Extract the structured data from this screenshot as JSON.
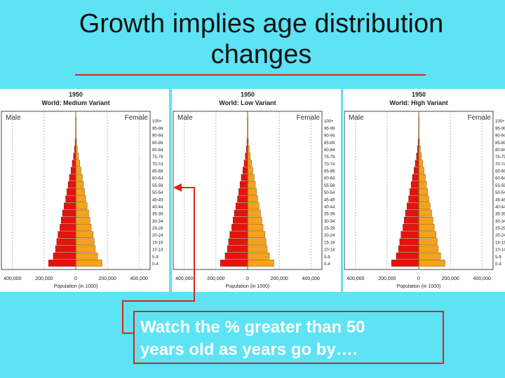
{
  "slide": {
    "title_line1": "Growth implies age distribution",
    "title_line2": "changes",
    "callout_line1": "Watch the % greater than 50",
    "callout_line2": "years old as years go by…."
  },
  "colors": {
    "background": "#5de3f4",
    "rule": "#d8261c",
    "male": "#e8120c",
    "female": "#f6a21a",
    "axis": "#7a5c1a"
  },
  "chart_data": [
    {
      "type": "bar",
      "title": "1950",
      "subtitle": "World: Medium Variant",
      "left_label": "Male",
      "right_label": "Female",
      "xlabel": "Population (in 1000)",
      "xticks": [
        "400,000",
        "200,000",
        "0",
        "200,000",
        "400,000"
      ],
      "xlim": [
        -470000,
        470000
      ],
      "categories": [
        "0-4",
        "5-9",
        "10-14",
        "15-19",
        "20-24",
        "25-29",
        "30-34",
        "35-39",
        "40-44",
        "45-49",
        "50-54",
        "55-59",
        "60-64",
        "65-69",
        "70-74",
        "75-79",
        "80-84",
        "85-89",
        "90-94",
        "95-99",
        "100+"
      ],
      "series": [
        {
          "name": "Male",
          "values": [
            172000,
            142000,
            128000,
            120000,
            112000,
            100000,
            92000,
            84000,
            74000,
            64000,
            56000,
            48000,
            40000,
            30000,
            22000,
            14000,
            8000,
            4000,
            1500,
            500,
            100
          ]
        },
        {
          "name": "Female",
          "values": [
            166000,
            138000,
            124000,
            117000,
            110000,
            98000,
            90000,
            82000,
            72000,
            64000,
            56000,
            49000,
            42000,
            33000,
            25000,
            17000,
            10000,
            5000,
            2000,
            600,
            150
          ]
        }
      ]
    },
    {
      "type": "bar",
      "title": "1950",
      "subtitle": "World: Low Variant",
      "left_label": "Male",
      "right_label": "Female",
      "xlabel": "Population (in 1000)",
      "xticks": [
        "400,000",
        "200,000",
        "0",
        "200,000",
        "400,000"
      ],
      "xlim": [
        -470000,
        470000
      ],
      "categories": [
        "0-4",
        "5-9",
        "10-14",
        "15-19",
        "20-24",
        "25-29",
        "30-34",
        "35-39",
        "40-44",
        "45-49",
        "50-54",
        "55-59",
        "60-64",
        "65-69",
        "70-74",
        "75-79",
        "80-84",
        "85-89",
        "90-94",
        "95-99",
        "100+"
      ],
      "series": [
        {
          "name": "Male",
          "values": [
            172000,
            142000,
            128000,
            120000,
            112000,
            100000,
            92000,
            84000,
            74000,
            64000,
            56000,
            48000,
            40000,
            30000,
            22000,
            14000,
            8000,
            4000,
            1500,
            500,
            100
          ]
        },
        {
          "name": "Female",
          "values": [
            166000,
            138000,
            124000,
            117000,
            110000,
            98000,
            90000,
            82000,
            72000,
            64000,
            56000,
            49000,
            42000,
            33000,
            25000,
            17000,
            10000,
            5000,
            2000,
            600,
            150
          ]
        }
      ]
    },
    {
      "type": "bar",
      "title": "1950",
      "subtitle": "World: High Variant",
      "left_label": "Male",
      "right_label": "Female",
      "xlabel": "Population (in 1000)",
      "xticks": [
        "400,000",
        "200,000",
        "0",
        "200,000",
        "400,000"
      ],
      "xlim": [
        -470000,
        470000
      ],
      "categories": [
        "0-4",
        "5-9",
        "10-14",
        "15-19",
        "20-24",
        "25-29",
        "30-34",
        "35-39",
        "40-44",
        "45-49",
        "50-54",
        "55-59",
        "60-64",
        "65-69",
        "70-74",
        "75-79",
        "80-84",
        "85-89",
        "90-94",
        "95-99",
        "100+"
      ],
      "series": [
        {
          "name": "Male",
          "values": [
            172000,
            142000,
            128000,
            120000,
            112000,
            100000,
            92000,
            84000,
            74000,
            64000,
            56000,
            48000,
            40000,
            30000,
            22000,
            14000,
            8000,
            4000,
            1500,
            500,
            100
          ]
        },
        {
          "name": "Female",
          "values": [
            166000,
            138000,
            124000,
            117000,
            110000,
            98000,
            90000,
            82000,
            72000,
            64000,
            56000,
            49000,
            42000,
            33000,
            25000,
            17000,
            10000,
            5000,
            2000,
            600,
            150
          ]
        }
      ]
    }
  ]
}
